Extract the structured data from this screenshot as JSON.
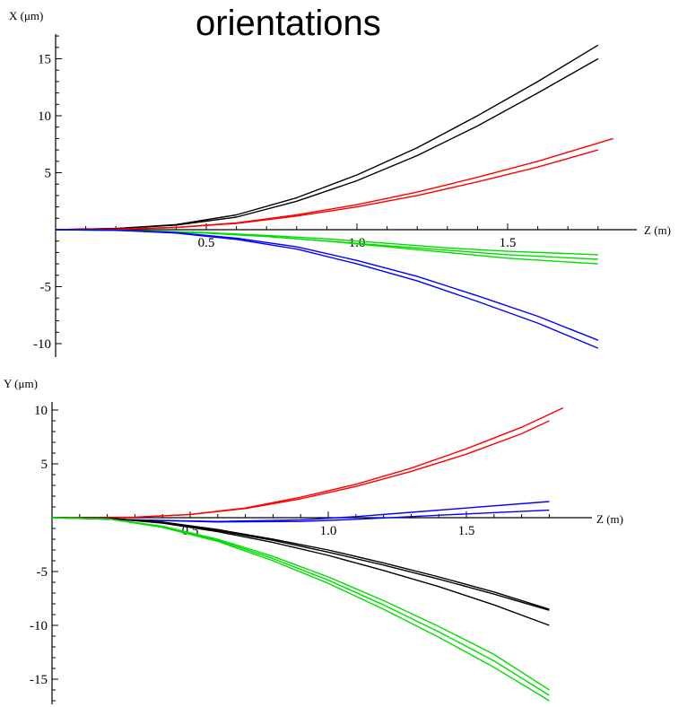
{
  "title": "orientations",
  "chart_data": [
    {
      "type": "line",
      "xlabel": "Z (m)",
      "ylabel": "X (μm)",
      "xlim": [
        0,
        1.85
      ],
      "ylim": [
        -10.5,
        17
      ],
      "xticks": [
        0.5,
        1.0,
        1.5
      ],
      "xtick_labels": [
        "0.5",
        "1.0",
        "1.5"
      ],
      "yticks": [
        -10,
        -5,
        5,
        10,
        15
      ],
      "ytick_labels": [
        "-10",
        "-5",
        "5",
        "10",
        "15"
      ],
      "grid": false,
      "series": [
        {
          "color": "#000000",
          "x": [
            0,
            0.2,
            0.4,
            0.6,
            0.8,
            1.0,
            1.2,
            1.4,
            1.6,
            1.8
          ],
          "y": [
            0,
            0.1,
            0.45,
            1.3,
            2.8,
            4.8,
            7.2,
            10.0,
            13.0,
            16.2
          ]
        },
        {
          "color": "#000000",
          "x": [
            0,
            0.2,
            0.4,
            0.6,
            0.8,
            1.0,
            1.2,
            1.4,
            1.6,
            1.8
          ],
          "y": [
            0,
            0.1,
            0.4,
            1.1,
            2.5,
            4.3,
            6.5,
            9.1,
            12.0,
            15.0
          ]
        },
        {
          "color": "#ff0000",
          "x": [
            0,
            0.2,
            0.4,
            0.6,
            0.8,
            1.0,
            1.2,
            1.4,
            1.6,
            1.85
          ],
          "y": [
            0,
            0.05,
            0.2,
            0.6,
            1.3,
            2.2,
            3.3,
            4.6,
            6.0,
            8.0
          ]
        },
        {
          "color": "#ff0000",
          "x": [
            0,
            0.2,
            0.4,
            0.6,
            0.8,
            1.0,
            1.2,
            1.4,
            1.6,
            1.8
          ],
          "y": [
            0,
            0.05,
            0.2,
            0.55,
            1.2,
            2.0,
            3.0,
            4.2,
            5.5,
            7.0
          ]
        },
        {
          "color": "#00dd00",
          "x": [
            0,
            0.3,
            0.5,
            0.7,
            0.9,
            1.1,
            1.3,
            1.5,
            1.8
          ],
          "y": [
            0,
            -0.1,
            -0.3,
            -0.6,
            -1.0,
            -1.4,
            -1.8,
            -2.2,
            -2.6
          ]
        },
        {
          "color": "#00dd00",
          "x": [
            0,
            0.3,
            0.5,
            0.7,
            0.9,
            1.1,
            1.3,
            1.5,
            1.8
          ],
          "y": [
            0,
            -0.1,
            -0.3,
            -0.6,
            -1.0,
            -1.5,
            -2.0,
            -2.5,
            -3.0
          ]
        },
        {
          "color": "#00dd00",
          "x": [
            0,
            0.3,
            0.5,
            0.7,
            0.9,
            1.1,
            1.3,
            1.5,
            1.8
          ],
          "y": [
            0,
            -0.1,
            -0.25,
            -0.5,
            -0.8,
            -1.2,
            -1.6,
            -1.9,
            -2.2
          ]
        },
        {
          "color": "#0000ff",
          "x": [
            0,
            0.2,
            0.4,
            0.6,
            0.8,
            1.0,
            1.2,
            1.4,
            1.6,
            1.8
          ],
          "y": [
            0,
            -0.05,
            -0.25,
            -0.75,
            -1.5,
            -2.7,
            -4.1,
            -5.8,
            -7.6,
            -9.7
          ]
        },
        {
          "color": "#0000ff",
          "x": [
            0,
            0.2,
            0.4,
            0.6,
            0.8,
            1.0,
            1.2,
            1.4,
            1.6,
            1.8
          ],
          "y": [
            0,
            -0.05,
            -0.3,
            -0.85,
            -1.7,
            -3.0,
            -4.5,
            -6.3,
            -8.2,
            -10.4
          ]
        }
      ]
    },
    {
      "type": "line",
      "xlabel": "Z (m)",
      "ylabel": "Y (μm)",
      "xlim": [
        0,
        1.85
      ],
      "ylim": [
        -17.5,
        10.5
      ],
      "xticks": [
        0.5,
        1.0,
        1.5
      ],
      "xtick_labels": [
        "0.5",
        "1.0",
        "1.5"
      ],
      "yticks": [
        -15,
        -10,
        -5,
        5,
        10
      ],
      "ytick_labels": [
        "-15",
        "-10",
        "-5",
        "5",
        "10"
      ],
      "grid": false,
      "series": [
        {
          "color": "#ff0000",
          "x": [
            0,
            0.3,
            0.5,
            0.7,
            0.9,
            1.1,
            1.3,
            1.5,
            1.7,
            1.85
          ],
          "y": [
            0,
            0.05,
            0.3,
            0.9,
            1.9,
            3.1,
            4.6,
            6.4,
            8.4,
            10.2
          ]
        },
        {
          "color": "#ff0000",
          "x": [
            0,
            0.3,
            0.5,
            0.7,
            0.9,
            1.1,
            1.3,
            1.5,
            1.7,
            1.8
          ],
          "y": [
            0,
            0.05,
            0.3,
            0.85,
            1.75,
            2.9,
            4.3,
            5.9,
            7.8,
            9.0
          ]
        },
        {
          "color": "#0000ff",
          "x": [
            0,
            0.3,
            0.6,
            0.9,
            1.1,
            1.3,
            1.5,
            1.8
          ],
          "y": [
            0,
            -0.2,
            -0.35,
            -0.2,
            0.1,
            0.5,
            0.9,
            1.5
          ]
        },
        {
          "color": "#0000ff",
          "x": [
            0,
            0.3,
            0.6,
            0.9,
            1.1,
            1.3,
            1.5,
            1.8
          ],
          "y": [
            0,
            -0.2,
            -0.4,
            -0.35,
            -0.15,
            0.1,
            0.35,
            0.7
          ]
        },
        {
          "color": "#000000",
          "x": [
            0,
            0.2,
            0.4,
            0.6,
            0.8,
            1.0,
            1.2,
            1.4,
            1.6,
            1.8
          ],
          "y": [
            0,
            -0.05,
            -0.4,
            -1.1,
            -2.0,
            -3.0,
            -4.2,
            -5.5,
            -6.9,
            -8.5
          ]
        },
        {
          "color": "#000000",
          "x": [
            0,
            0.2,
            0.4,
            0.6,
            0.8,
            1.0,
            1.2,
            1.4,
            1.6,
            1.8
          ],
          "y": [
            0,
            -0.05,
            -0.45,
            -1.2,
            -2.1,
            -3.2,
            -4.4,
            -5.7,
            -7.1,
            -8.6
          ]
        },
        {
          "color": "#000000",
          "x": [
            0,
            0.2,
            0.4,
            0.6,
            0.8,
            1.0,
            1.2,
            1.4,
            1.6,
            1.8
          ],
          "y": [
            0,
            -0.05,
            -0.5,
            -1.3,
            -2.3,
            -3.5,
            -4.9,
            -6.4,
            -8.1,
            -10.0
          ]
        },
        {
          "color": "#00dd00",
          "x": [
            0,
            0.2,
            0.4,
            0.6,
            0.8,
            1.0,
            1.2,
            1.4,
            1.6,
            1.8
          ],
          "y": [
            0,
            -0.1,
            -0.8,
            -2.0,
            -3.6,
            -5.5,
            -7.7,
            -10.1,
            -12.7,
            -16.0
          ]
        },
        {
          "color": "#00dd00",
          "x": [
            0,
            0.2,
            0.4,
            0.6,
            0.8,
            1.0,
            1.2,
            1.4,
            1.6,
            1.8
          ],
          "y": [
            0,
            -0.1,
            -0.85,
            -2.1,
            -3.8,
            -5.8,
            -8.1,
            -10.6,
            -13.3,
            -16.5
          ]
        },
        {
          "color": "#00dd00",
          "x": [
            0,
            0.2,
            0.4,
            0.6,
            0.8,
            1.0,
            1.2,
            1.4,
            1.6,
            1.8
          ],
          "y": [
            0,
            -0.1,
            -0.9,
            -2.2,
            -4.0,
            -6.1,
            -8.5,
            -11.1,
            -13.9,
            -17.0
          ]
        }
      ]
    }
  ]
}
